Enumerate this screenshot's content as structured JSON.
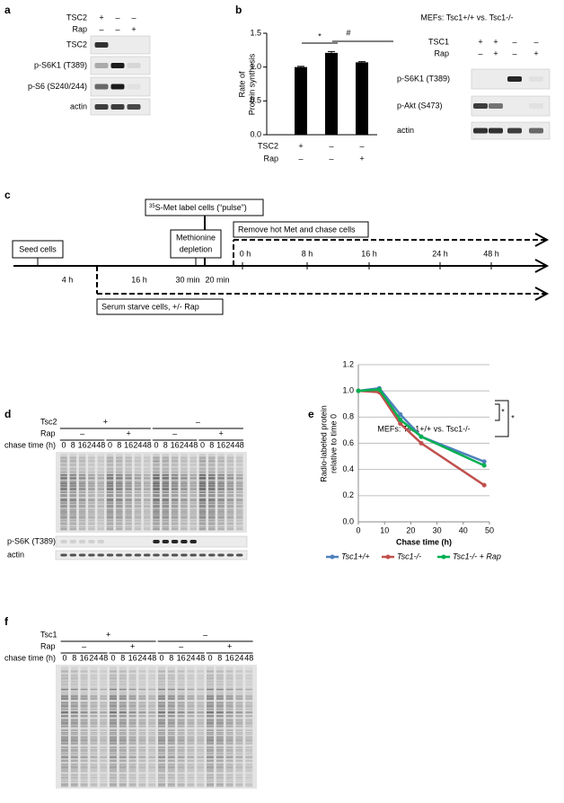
{
  "panel_labels": [
    "a",
    "b",
    "c",
    "d",
    "e",
    "f"
  ],
  "panel_a": {
    "conditions": [
      {
        "name": "TSC2",
        "signs": [
          "+",
          "–",
          "–"
        ]
      },
      {
        "name": "Rap",
        "signs": [
          "–",
          "–",
          "+"
        ]
      }
    ],
    "blots": [
      "TSC2",
      "p-S6K1 (T389)",
      "p-S6 (S240/244)",
      "actin"
    ]
  },
  "panel_b_blot": {
    "title": "MEFs: Tsc1+/+ vs. Tsc1-/-",
    "conditions": [
      {
        "name": "TSC1",
        "signs": [
          "+",
          "+",
          "–",
          "–"
        ]
      },
      {
        "name": "Rap",
        "signs": [
          "–",
          "+",
          "–",
          "+"
        ]
      }
    ],
    "blots": [
      "p-S6K1 (T389)",
      "p-Akt (S473)",
      "actin"
    ]
  },
  "chart_data": [
    {
      "type": "bar",
      "y_label": [
        "Rate of",
        "Protein synthesis"
      ],
      "categories": [
        null,
        null,
        null
      ],
      "values": [
        1.0,
        1.21,
        1.07
      ],
      "errors": [
        0.01,
        0.02,
        0.01
      ],
      "color": "#000000",
      "ylim": [
        0,
        1.5
      ],
      "yticks": [
        {
          "value": 0,
          "label": "0.0"
        },
        {
          "value": 0.5,
          "label": "0.5"
        },
        {
          "value": 1,
          "label": "1.0"
        },
        {
          "value": 1.5,
          "label": "1.5"
        }
      ],
      "conditions": [
        {
          "name": "TSC2",
          "signs": [
            "+",
            "–",
            "–"
          ]
        },
        {
          "name": "Rap",
          "signs": [
            "–",
            "–",
            "+"
          ]
        }
      ],
      "annotations": [
        "*",
        "#"
      ]
    },
    {
      "type": "line",
      "title": "MEFs: Tsc1+/+ vs. Tsc1-/-",
      "x_label": "Chase time (h)",
      "y_label": [
        "Radio-labeled protein",
        "relative to time 0"
      ],
      "x": [
        0,
        8,
        16,
        24,
        48
      ],
      "series": [
        {
          "name": "Tsc1+/+",
          "color": "#4f81bd",
          "values": [
            1.0,
            1.02,
            0.82,
            0.65,
            0.46
          ]
        },
        {
          "name": "Tsc1-/-",
          "color": "#c0504d",
          "values": [
            1.0,
            0.99,
            0.75,
            0.6,
            0.28
          ]
        },
        {
          "name": "Tsc1-/- + Rap",
          "color": "#00b050",
          "values": [
            1.0,
            1.01,
            0.78,
            0.65,
            0.43
          ]
        }
      ],
      "xlim": [
        0,
        50
      ],
      "xticks": [
        0,
        10,
        20,
        30,
        40,
        50
      ],
      "ylim": [
        0,
        1.2
      ],
      "yticks": [
        {
          "value": 0,
          "label": "0.0"
        },
        {
          "value": 0.2,
          "label": "0.2"
        },
        {
          "value": 0.4,
          "label": "0.4"
        },
        {
          "value": 0.6,
          "label": "0.6"
        },
        {
          "value": 0.8,
          "label": "0.8"
        },
        {
          "value": 1,
          "label": "1.0"
        },
        {
          "value": 1.2,
          "label": "1.2"
        }
      ],
      "grid": true,
      "annotations": [
        "*",
        "*"
      ]
    }
  ],
  "panel_c": {
    "seed": "Seed cells",
    "starve": "Serum starve cells, +/- Rap",
    "met_depletion": [
      "Methionine",
      "depletion"
    ],
    "pulse_sup": "35",
    "pulse": "S-Met label cells (“pulse”)",
    "chase": "Remove hot Met and chase cells",
    "intervals": [
      "4 h",
      "16 h",
      "30 min",
      "20 min"
    ],
    "chase_ticks": [
      "0 h",
      "8 h",
      "16 h",
      "24 h",
      "48 h"
    ]
  },
  "panel_d": {
    "conditions": [
      {
        "name": "Tsc2",
        "groups": [
          "+",
          "–"
        ]
      },
      {
        "name": "Rap",
        "groups": [
          "–",
          "+",
          "–",
          "+"
        ]
      }
    ],
    "time_label": "chase time (h)",
    "chase_times": [
      "0",
      "8",
      "16",
      "24",
      "48"
    ],
    "blots": [
      "p-S6K (T389)",
      "actin"
    ]
  },
  "panel_f": {
    "conditions": [
      {
        "name": "Tsc1",
        "groups": [
          "+",
          "–"
        ]
      },
      {
        "name": "Rap",
        "groups": [
          "–",
          "+",
          "–",
          "+"
        ]
      }
    ],
    "time_label": "chase time (h)",
    "chase_times": [
      "0",
      "8",
      "16",
      "24",
      "48"
    ]
  }
}
